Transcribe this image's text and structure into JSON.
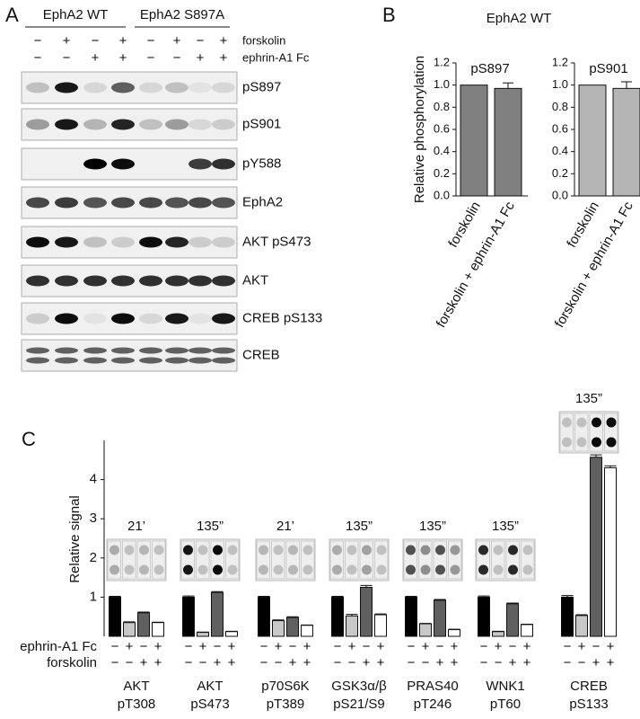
{
  "panel_labels": [
    "A",
    "B",
    "C"
  ],
  "panel_a": {
    "groups": [
      "EphA2 WT",
      "EphA2 S897A"
    ],
    "treatments": [
      {
        "label": "forskolin",
        "signs": [
          "−",
          "+",
          "−",
          "+",
          "−",
          "+",
          "−",
          "+"
        ]
      },
      {
        "label": "ephrin-A1 Fc",
        "signs": [
          "−",
          "−",
          "+",
          "+",
          "−",
          "−",
          "+",
          "+"
        ]
      }
    ],
    "blots": [
      "pS897",
      "pS901",
      "pY588",
      "EphA2",
      "AKT pS473",
      "AKT",
      "CREB pS133",
      "CREB"
    ]
  },
  "panel_b": {
    "title": "EphA2 WT"
  },
  "chart_data": [
    {
      "type": "bar",
      "title": "pS897",
      "ylabel": "Relative phosphorylation",
      "categories": [
        "forskolin",
        "forskolin + ephrin-A1 Fc"
      ],
      "values": [
        1.0,
        0.97
      ],
      "errors": [
        null,
        0.05
      ],
      "color": "#808080",
      "ylim": [
        0,
        1.2
      ],
      "yticks": [
        {
          "value": 0,
          "label": "0.0"
        },
        0.2,
        0.4,
        0.6,
        0.8,
        {
          "value": 1,
          "label": "1.0"
        },
        1.2
      ]
    },
    {
      "type": "bar",
      "title": "pS901",
      "categories": [
        "forskolin",
        "forskolin + ephrin-A1 Fc"
      ],
      "values": [
        1.0,
        0.97
      ],
      "errors": [
        null,
        0.06
      ],
      "color": "#b5b5b5",
      "ylim": [
        0,
        1.2
      ],
      "yticks": [
        {
          "value": 0,
          "label": "0.0"
        },
        0.2,
        0.4,
        0.6,
        0.8,
        {
          "value": 1,
          "label": "1.0"
        },
        1.2
      ]
    },
    {
      "type": "grouped_bar",
      "ylabel": "Relative signal",
      "categories": [
        [
          "AKT",
          "pT308"
        ],
        [
          "AKT",
          "pS473"
        ],
        [
          "p70S6K",
          "pT389"
        ],
        [
          "GSK3α/β",
          "pS21/S9"
        ],
        [
          "PRAS40",
          "pT246"
        ],
        [
          "WNK1",
          "pT60"
        ],
        [
          "CREB",
          "pS133"
        ]
      ],
      "time_labels": [
        "21’",
        "135”",
        "21’",
        "135”",
        "135”",
        "135”",
        "135”"
      ],
      "conditions": [
        {
          "label": "ephrin-A1 Fc",
          "signs": [
            "−",
            "+",
            "−",
            "+"
          ]
        },
        {
          "label": "forskolin",
          "signs": [
            "−",
            "−",
            "+",
            "+"
          ]
        }
      ],
      "series": [
        {
          "color": "#000000",
          "values": [
            1.0,
            1.0,
            1.0,
            1.0,
            1.0,
            1.0,
            1.0
          ],
          "errors": [
            0.02,
            0.03,
            0.02,
            0.02,
            0.02,
            0.03,
            0.04
          ]
        },
        {
          "color": "#c8c8c8",
          "values": [
            0.35,
            0.1,
            0.4,
            0.52,
            0.32,
            0.12,
            0.53
          ],
          "errors": [
            0.02,
            0.01,
            0.02,
            0.04,
            0.01,
            0.01,
            0.02
          ]
        },
        {
          "color": "#606060",
          "values": [
            0.6,
            1.12,
            0.48,
            1.25,
            0.92,
            0.83,
            4.57
          ],
          "errors": [
            0.02,
            0.02,
            0.02,
            0.05,
            0.02,
            0.02,
            0.06
          ]
        },
        {
          "color": "#ffffff",
          "values": [
            0.35,
            0.12,
            0.28,
            0.55,
            0.17,
            0.3,
            4.3
          ],
          "errors": [
            0.01,
            0.01,
            0.01,
            0.02,
            0.01,
            0.01,
            0.05
          ]
        }
      ],
      "ylim": [
        0,
        5
      ],
      "yticks": [
        1,
        2,
        3,
        4
      ]
    }
  ]
}
